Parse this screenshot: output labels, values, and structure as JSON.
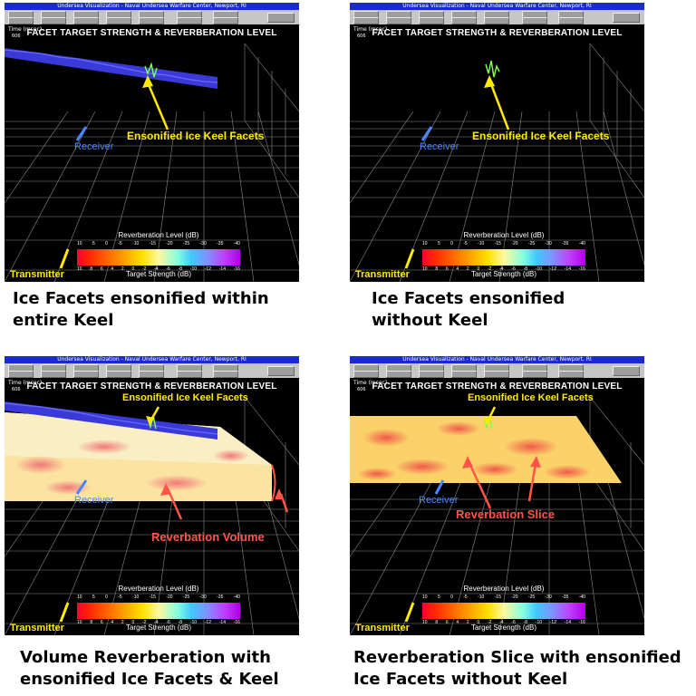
{
  "panels": [
    {
      "window_title": "Undersea Visualization - Naval Undersea Warfare Center, Newport, RI",
      "plot_title": "FACET TARGET STRENGTH & REVERBERATION LEVEL",
      "time_label": "Time (msec)",
      "time_value": "606",
      "annotation_facets": "Ensonified Ice Keel Facets",
      "receiver_label": "Receiver",
      "transmitter_label": "Transmitter",
      "legend_top_title": "Reverberation Level (dB)",
      "legend_bottom_title": "Target Strength (dB)",
      "legend_top_ticks": [
        "10",
        "5",
        "0",
        "-5",
        "-10",
        "-15",
        "-20",
        "-25",
        "-30",
        "-35",
        "-40"
      ],
      "legend_bottom_ticks": [
        "10",
        "8",
        "6",
        "4",
        "2",
        "0",
        "-2",
        "-4",
        "-6",
        "-8",
        "-10",
        "-12",
        "-14",
        "-16"
      ],
      "caption_line1": "Ice Facets ensonified within",
      "caption_line2": "entire Keel"
    },
    {
      "window_title": "Undersea Visualization - Naval Undersea Warfare Center, Newport, RI",
      "plot_title": "FACET TARGET STRENGTH & REVERBERATION LEVEL",
      "time_label": "Time (msec)",
      "time_value": "606",
      "annotation_facets": "Ensonified Ice Keel Facets",
      "receiver_label": "Receiver",
      "transmitter_label": "Transmitter",
      "legend_top_title": "Reverberation Level (dB)",
      "legend_bottom_title": "Target Strength (dB)",
      "legend_top_ticks": [
        "10",
        "5",
        "0",
        "-5",
        "-10",
        "-15",
        "-20",
        "-25",
        "-30",
        "-35",
        "-40"
      ],
      "legend_bottom_ticks": [
        "10",
        "8",
        "6",
        "4",
        "2",
        "0",
        "-2",
        "-4",
        "-6",
        "-8",
        "-10",
        "-12",
        "-14",
        "-16"
      ],
      "caption_line1": "Ice Facets ensonified",
      "caption_line2": "without Keel"
    },
    {
      "window_title": "Undersea Visualization - Naval Undersea Warfare Center, Newport, RI",
      "plot_title": "FACET TARGET STRENGTH & REVERBERATION LEVEL",
      "time_label": "Time (msec)",
      "time_value": "606",
      "annotation_facets": "Ensonified Ice Keel Facets",
      "receiver_label": "Receiver",
      "transmitter_label": "Transmitter",
      "annotation_reverb": "Reverbation Volume",
      "legend_top_title": "Reverberation Level (dB)",
      "legend_bottom_title": "Target Strength (dB)",
      "legend_top_ticks": [
        "10",
        "5",
        "0",
        "-5",
        "-10",
        "-15",
        "-20",
        "-25",
        "-30",
        "-35",
        "-40"
      ],
      "legend_bottom_ticks": [
        "10",
        "8",
        "6",
        "4",
        "2",
        "0",
        "-2",
        "-4",
        "-6",
        "-8",
        "-10",
        "-12",
        "-14",
        "-16"
      ],
      "caption_line1": "Volume Reverberation with",
      "caption_line2": "ensonified Ice Facets & Keel"
    },
    {
      "window_title": "Undersea Visualization - Naval Undersea Warfare Center, Newport, RI",
      "plot_title": "FACET TARGET STRENGTH & REVERBERATION LEVEL",
      "time_label": "Time (msec)",
      "time_value": "606",
      "annotation_facets": "Ensonified Ice Keel Facets",
      "receiver_label": "Receiver",
      "transmitter_label": "Transmitter",
      "annotation_reverb": "Reverbation Slice",
      "legend_top_title": "Reverberation Level (dB)",
      "legend_bottom_title": "Target Strength (dB)",
      "legend_top_ticks": [
        "10",
        "5",
        "0",
        "-5",
        "-10",
        "-15",
        "-20",
        "-25",
        "-30",
        "-35",
        "-40"
      ],
      "legend_bottom_ticks": [
        "10",
        "8",
        "6",
        "4",
        "2",
        "0",
        "-2",
        "-4",
        "-6",
        "-8",
        "-10",
        "-12",
        "-14",
        "-16"
      ],
      "caption_line1": "Reverberation Slice with ensonified",
      "caption_line2": "Ice Facets without Keel"
    }
  ],
  "colors": {
    "title_bar": "#1a2acb",
    "annotation_yellow": "#ffea00",
    "annotation_red": "#ff5548",
    "receiver_blue": "#4b86ff",
    "keel_blue": "#3a3ad8"
  }
}
